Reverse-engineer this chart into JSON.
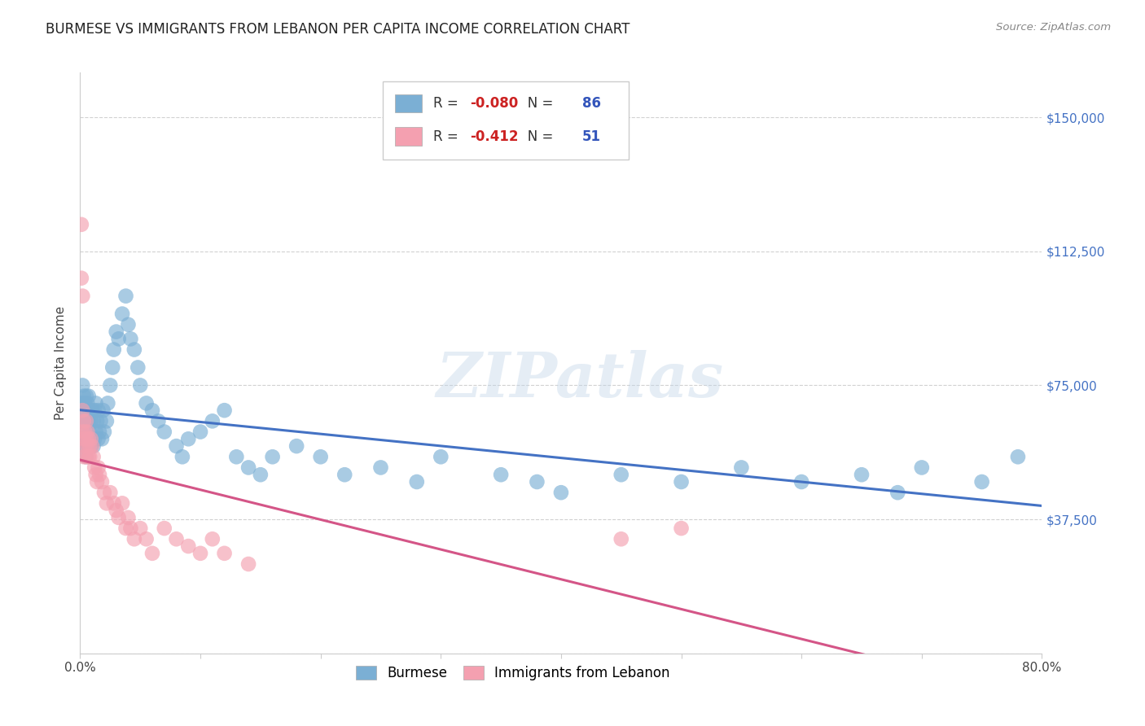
{
  "title": "BURMESE VS IMMIGRANTS FROM LEBANON PER CAPITA INCOME CORRELATION CHART",
  "source": "Source: ZipAtlas.com",
  "ylabel": "Per Capita Income",
  "xlim": [
    0.0,
    0.8
  ],
  "ylim": [
    0,
    162500
  ],
  "yticks": [
    0,
    37500,
    75000,
    112500,
    150000
  ],
  "ytick_labels_right": [
    "",
    "$37,500",
    "$75,000",
    "$112,500",
    "$150,000"
  ],
  "xticks": [
    0.0,
    0.1,
    0.2,
    0.3,
    0.4,
    0.5,
    0.6,
    0.7,
    0.8
  ],
  "xtick_labels": [
    "0.0%",
    "",
    "",
    "",
    "",
    "",
    "",
    "",
    "80.0%"
  ],
  "blue_color": "#7BAFD4",
  "pink_color": "#F4A0B0",
  "blue_line_color": "#4472C4",
  "pink_line_color": "#D45587",
  "R_blue": -0.08,
  "N_blue": 86,
  "R_pink": -0.412,
  "N_pink": 51,
  "watermark": "ZIPatlas",
  "legend_label_blue": "Burmese",
  "legend_label_pink": "Immigrants from Lebanon",
  "blue_points_x": [
    0.001,
    0.001,
    0.002,
    0.002,
    0.003,
    0.003,
    0.003,
    0.004,
    0.004,
    0.004,
    0.005,
    0.005,
    0.005,
    0.005,
    0.006,
    0.006,
    0.006,
    0.007,
    0.007,
    0.007,
    0.008,
    0.008,
    0.009,
    0.009,
    0.01,
    0.01,
    0.011,
    0.011,
    0.012,
    0.012,
    0.013,
    0.013,
    0.014,
    0.015,
    0.015,
    0.016,
    0.017,
    0.018,
    0.019,
    0.02,
    0.022,
    0.023,
    0.025,
    0.027,
    0.028,
    0.03,
    0.032,
    0.035,
    0.038,
    0.04,
    0.042,
    0.045,
    0.048,
    0.05,
    0.055,
    0.06,
    0.065,
    0.07,
    0.08,
    0.085,
    0.09,
    0.1,
    0.11,
    0.12,
    0.13,
    0.14,
    0.15,
    0.16,
    0.18,
    0.2,
    0.22,
    0.25,
    0.28,
    0.3,
    0.35,
    0.38,
    0.4,
    0.45,
    0.5,
    0.55,
    0.6,
    0.65,
    0.68,
    0.7,
    0.75,
    0.78
  ],
  "blue_points_y": [
    60000,
    70000,
    65000,
    75000,
    60000,
    68000,
    72000,
    58000,
    65000,
    70000,
    55000,
    62000,
    68000,
    72000,
    58000,
    65000,
    70000,
    60000,
    65000,
    72000,
    62000,
    68000,
    58000,
    65000,
    60000,
    68000,
    58000,
    65000,
    60000,
    68000,
    62000,
    70000,
    65000,
    60000,
    68000,
    62000,
    65000,
    60000,
    68000,
    62000,
    65000,
    70000,
    75000,
    80000,
    85000,
    90000,
    88000,
    95000,
    100000,
    92000,
    88000,
    85000,
    80000,
    75000,
    70000,
    68000,
    65000,
    62000,
    58000,
    55000,
    60000,
    62000,
    65000,
    68000,
    55000,
    52000,
    50000,
    55000,
    58000,
    55000,
    50000,
    52000,
    48000,
    55000,
    50000,
    48000,
    45000,
    50000,
    48000,
    52000,
    48000,
    50000,
    45000,
    52000,
    48000,
    55000
  ],
  "pink_points_x": [
    0.001,
    0.001,
    0.002,
    0.002,
    0.002,
    0.003,
    0.003,
    0.003,
    0.004,
    0.004,
    0.005,
    0.005,
    0.005,
    0.006,
    0.006,
    0.007,
    0.007,
    0.008,
    0.008,
    0.009,
    0.01,
    0.011,
    0.012,
    0.013,
    0.014,
    0.015,
    0.016,
    0.018,
    0.02,
    0.022,
    0.025,
    0.028,
    0.03,
    0.032,
    0.035,
    0.038,
    0.04,
    0.042,
    0.045,
    0.05,
    0.055,
    0.06,
    0.07,
    0.08,
    0.09,
    0.1,
    0.11,
    0.12,
    0.14,
    0.45,
    0.5
  ],
  "pink_points_y": [
    120000,
    105000,
    100000,
    68000,
    62000,
    65000,
    60000,
    55000,
    62000,
    58000,
    60000,
    65000,
    55000,
    58000,
    62000,
    55000,
    60000,
    58000,
    55000,
    60000,
    58000,
    55000,
    52000,
    50000,
    48000,
    52000,
    50000,
    48000,
    45000,
    42000,
    45000,
    42000,
    40000,
    38000,
    42000,
    35000,
    38000,
    35000,
    32000,
    35000,
    32000,
    28000,
    35000,
    32000,
    30000,
    28000,
    32000,
    28000,
    25000,
    32000,
    35000
  ]
}
